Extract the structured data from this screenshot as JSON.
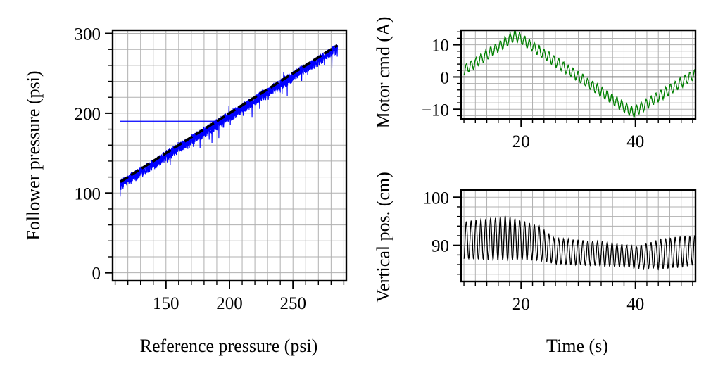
{
  "chart_data": [
    {
      "id": "scatter",
      "type": "line",
      "title": "",
      "xlabel": "Reference pressure (psi)",
      "ylabel": "Follower pressure (psi)",
      "xlim": [
        108,
        292
      ],
      "ylim": [
        -10,
        304
      ],
      "xticks": [
        150,
        200,
        250
      ],
      "xtick_labels": [
        "150",
        "200",
        "250"
      ],
      "yticks": [
        0,
        100,
        200,
        300
      ],
      "ytick_labels": [
        "0",
        "100",
        "200",
        "300"
      ],
      "grid": true,
      "series": [
        {
          "name": "follower vs reference",
          "color": "#0000ff",
          "style": "noisy band",
          "x_range": [
            114,
            285
          ],
          "y_range": [
            103,
            282
          ],
          "noise_amplitude": 9
        },
        {
          "name": "initial transient",
          "color": "#0000ff",
          "style": "thin line",
          "x": [
            114,
            190
          ],
          "y": [
            190,
            190
          ]
        },
        {
          "name": "unity reference",
          "color": "#000000",
          "style": "dashed",
          "x": [
            114,
            285
          ],
          "y": [
            114,
            285
          ]
        }
      ]
    },
    {
      "id": "motor",
      "type": "line",
      "title": "",
      "xlabel": "",
      "ylabel": "Motor cmd (A)",
      "xlim": [
        9.5,
        50.5
      ],
      "ylim": [
        -13,
        14.5
      ],
      "xticks": [
        20,
        40
      ],
      "xtick_labels": [
        "20",
        "40"
      ],
      "yticks": [
        -10,
        0,
        10
      ],
      "ytick_labels": [
        "−10",
        "0",
        "10"
      ],
      "grid": true,
      "series": [
        {
          "name": "motor command",
          "color": "#008000",
          "description": "slow triangle wave with fast oscillation",
          "knots_t": [
            10,
            19,
            39.5,
            50.5
          ],
          "knots_value": [
            2,
            13,
            -11,
            1
          ],
          "oscillation_amplitude": 1.5,
          "oscillation_period_s": 0.85
        },
        {
          "name": "zero line",
          "color": "#808080",
          "y": 0
        }
      ]
    },
    {
      "id": "position",
      "type": "line",
      "title": "",
      "xlabel": "Time (s)",
      "ylabel": "Vertical pos. (cm)",
      "xlim": [
        9.5,
        50.5
      ],
      "ylim": [
        82.5,
        101.5
      ],
      "xticks": [
        20,
        40
      ],
      "xtick_labels": [
        "20",
        "40"
      ],
      "yticks": [
        90,
        100
      ],
      "ytick_labels": [
        "90",
        "100"
      ],
      "grid": true,
      "series": [
        {
          "name": "vertical position",
          "color": "#000000",
          "knots_t": [
            10,
            17.5,
            23,
            26,
            35,
            40,
            45,
            50.5
          ],
          "knots_center": [
            91,
            91.5,
            90.5,
            88.8,
            88.2,
            87.5,
            88.3,
            89
          ],
          "knots_amplitude": [
            3.8,
            4.5,
            3.5,
            2.6,
            2.5,
            2.2,
            3.1,
            3.0
          ],
          "oscillation_period_s": 0.85
        }
      ]
    }
  ]
}
